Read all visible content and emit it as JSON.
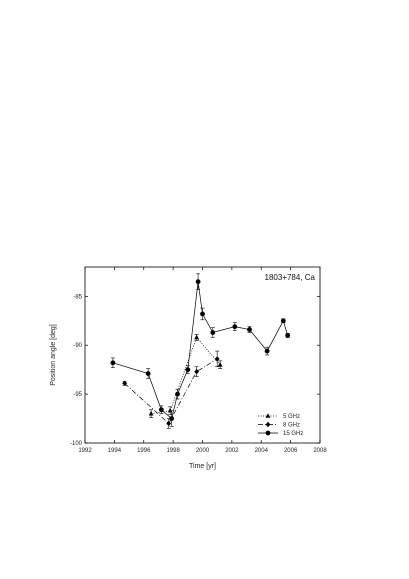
{
  "chart_data": {
    "type": "line",
    "title": "1803+784, Ca",
    "xlabel": "Time [yr]",
    "ylabel": "Position angle [deg]",
    "xlim": [
      1992,
      2008
    ],
    "ylim": [
      -100,
      -82
    ],
    "x_ticks": [
      "1992",
      "1994",
      "1996",
      "1998",
      "2000",
      "2002",
      "2004",
      "2006",
      "2008"
    ],
    "y_ticks": [
      "-85",
      "-90",
      "-95",
      "-100"
    ],
    "grid": false,
    "legend_position": "bottom-right",
    "series": [
      {
        "name": "5 GHz",
        "marker": "triangle",
        "line_style": "dotted",
        "points": [
          {
            "x": 1996.5,
            "y": -97.0,
            "err": 0.4
          },
          {
            "x": 1997.8,
            "y": -96.7,
            "err": 0.4
          },
          {
            "x": 1999.6,
            "y": -89.2,
            "err": 0.3
          },
          {
            "x": 2001.2,
            "y": -92.0,
            "err": 0.4
          }
        ]
      },
      {
        "name": "8 GHz",
        "marker": "diamond",
        "line_style": "dash-dot",
        "points": [
          {
            "x": 1994.7,
            "y": -93.9,
            "err": 0.2
          },
          {
            "x": 1997.7,
            "y": -98.0,
            "err": 0.5
          },
          {
            "x": 1999.6,
            "y": -92.7,
            "err": 0.5
          },
          {
            "x": 2001.0,
            "y": -91.4,
            "err": 0.8
          }
        ]
      },
      {
        "name": "15 GHz",
        "marker": "circle",
        "line_style": "solid",
        "points": [
          {
            "x": 1993.9,
            "y": -91.8,
            "err": 0.5
          },
          {
            "x": 1996.3,
            "y": -92.9,
            "err": 0.5
          },
          {
            "x": 1997.2,
            "y": -96.6,
            "err": 0.4
          },
          {
            "x": 1997.9,
            "y": -97.5,
            "err": 0.8
          },
          {
            "x": 1998.3,
            "y": -95.0,
            "err": 0.5
          },
          {
            "x": 1999.0,
            "y": -92.5,
            "err": 0.4
          },
          {
            "x": 1999.7,
            "y": -83.5,
            "err": 0.8
          },
          {
            "x": 2000.0,
            "y": -86.8,
            "err": 0.6
          },
          {
            "x": 2000.7,
            "y": -88.7,
            "err": 0.5
          },
          {
            "x": 2002.2,
            "y": -88.1,
            "err": 0.4
          },
          {
            "x": 2003.2,
            "y": -88.4,
            "err": 0.3
          },
          {
            "x": 2004.4,
            "y": -90.6,
            "err": 0.4
          },
          {
            "x": 2005.5,
            "y": -87.5,
            "err": 0.2
          },
          {
            "x": 2005.8,
            "y": -89.0,
            "err": 0.2
          }
        ]
      }
    ]
  }
}
